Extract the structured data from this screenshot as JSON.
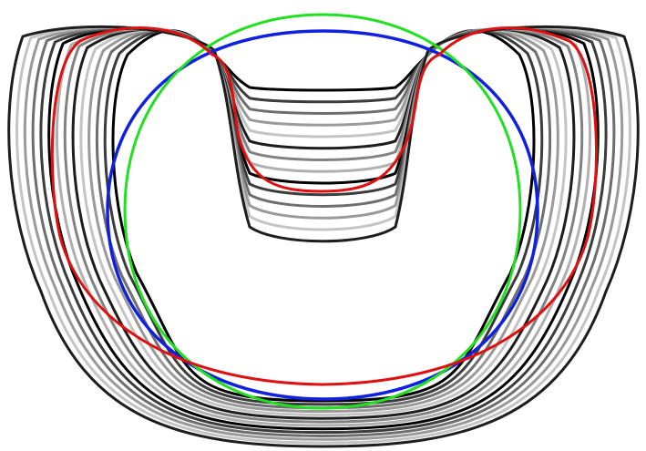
{
  "figure": {
    "description_free": true,
    "background_color": "#ffffff",
    "curve_families": [
      {
        "name": "gray-shape-family",
        "colors": [
          "#000000",
          "#3c3c3c",
          "#6e6e6e",
          "#9a9a9a",
          "#c4c4c4",
          "#1e1e1e",
          "#828282",
          "#b0b0b0"
        ],
        "count": 14
      },
      {
        "name": "red-shape",
        "color": "#e01010"
      },
      {
        "name": "blue-shape",
        "color": "#1020e0"
      },
      {
        "name": "green-circle",
        "color": "#20e020"
      }
    ]
  }
}
